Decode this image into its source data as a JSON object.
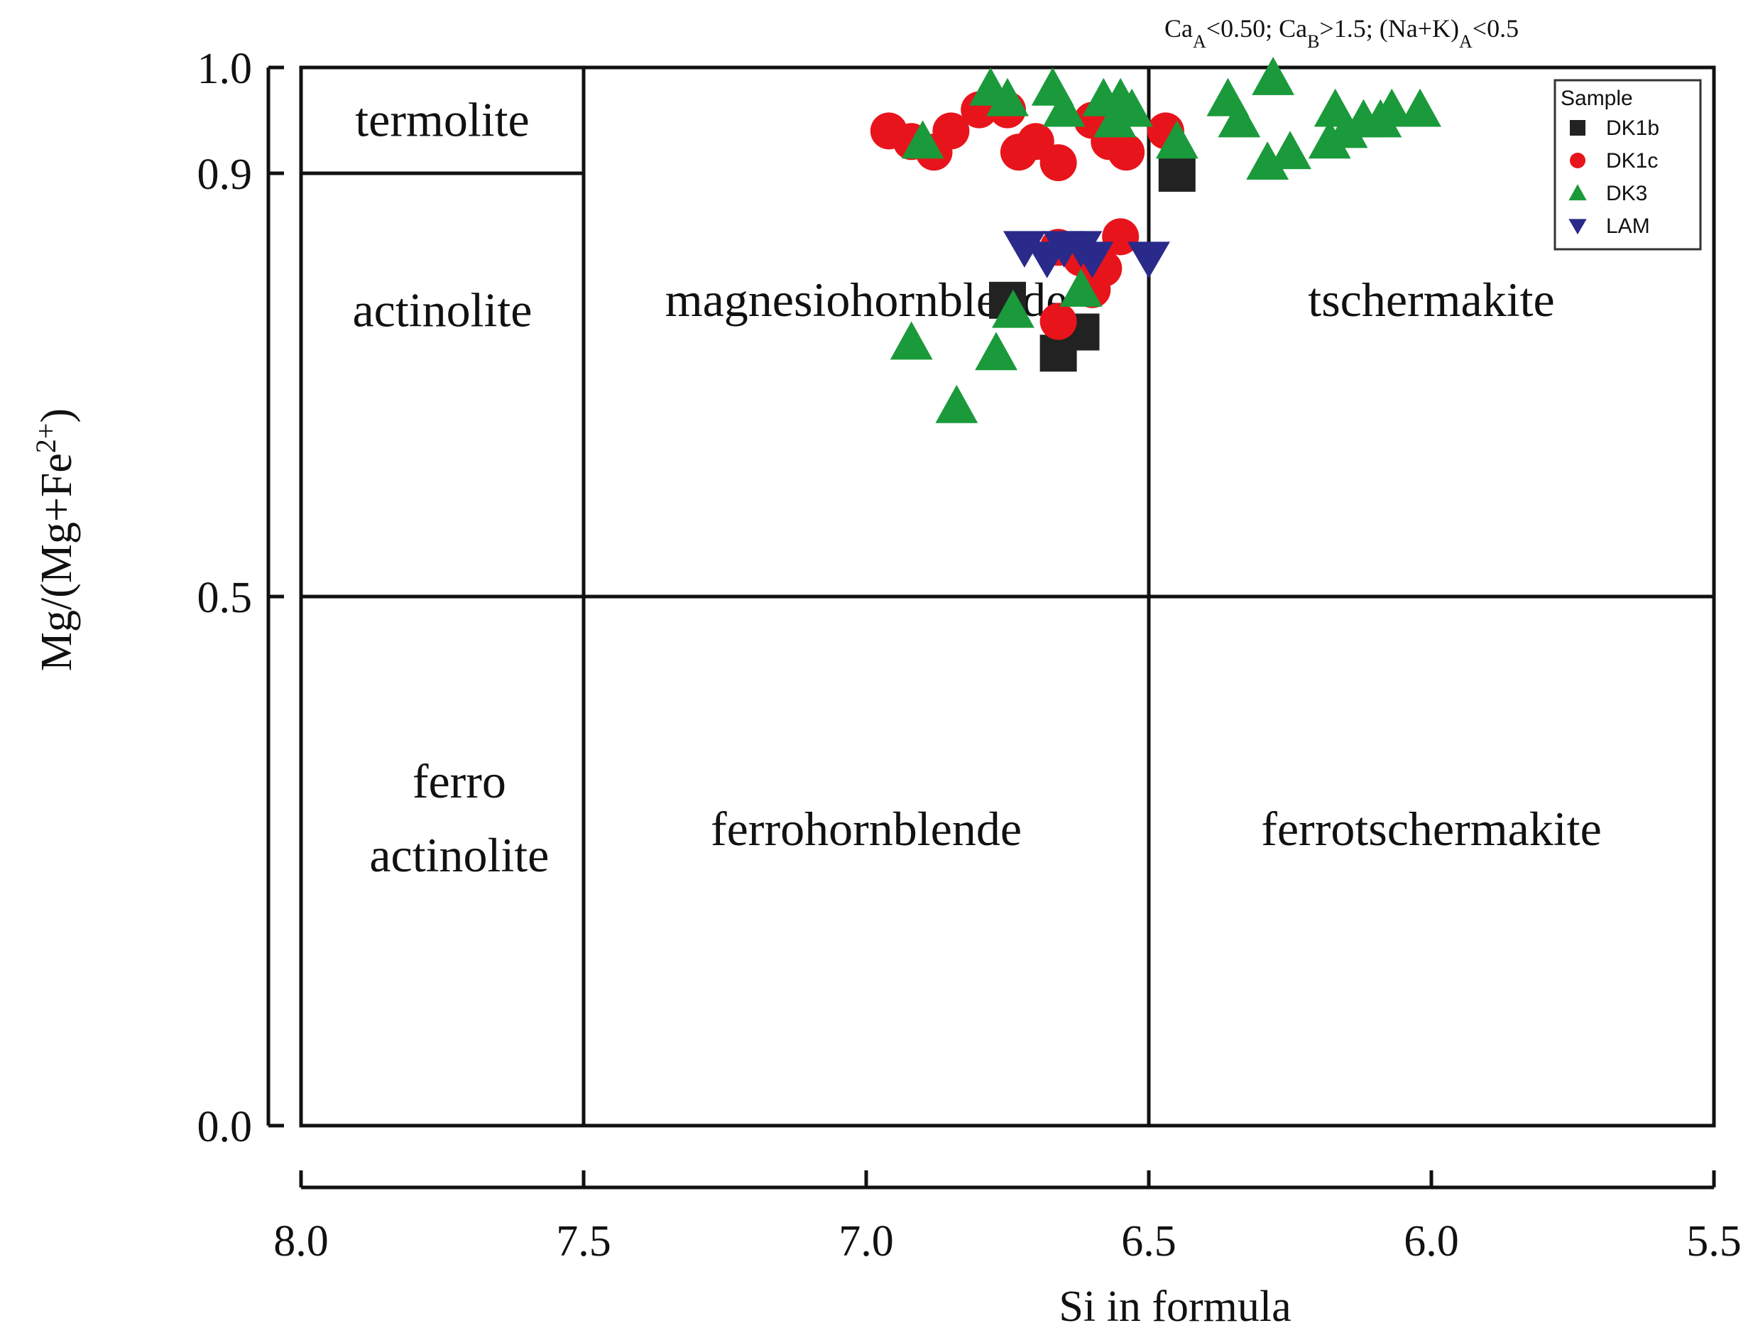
{
  "chart_data": {
    "type": "scatter",
    "title": "",
    "subtitle": "CaA<0.50; CaB>1.5; (Na+K)A<0.5",
    "subtitle_parts": [
      {
        "text": "Ca",
        "sub": false
      },
      {
        "text": "A",
        "sub": true
      },
      {
        "text": "<0.50; Ca",
        "sub": false
      },
      {
        "text": "B",
        "sub": true
      },
      {
        "text": ">1.5; (Na+K)",
        "sub": false
      },
      {
        "text": "A",
        "sub": true
      },
      {
        "text": "<0.5",
        "sub": false
      }
    ],
    "xlabel": "Si in formula",
    "ylabel": "Mg/(Mg+Fe2+)",
    "ylabel_base": "Mg/(Mg+Fe",
    "ylabel_sup": "2+",
    "ylabel_close": ")",
    "xlim": [
      8.0,
      5.5
    ],
    "ylim": [
      0.0,
      1.0
    ],
    "x_reversed": true,
    "xticks": [
      8.0,
      7.5,
      7.0,
      6.5,
      6.0,
      5.5
    ],
    "xtick_labels": [
      "8.0",
      "7.5",
      "7.0",
      "6.5",
      "6.0",
      "5.5"
    ],
    "yticks": [
      0.0,
      0.5,
      0.9,
      1.0
    ],
    "ytick_labels": [
      "0.0",
      "0.5",
      "0.9",
      "1.0"
    ],
    "grid": false,
    "legend_position": "top-right",
    "legend_title": "Sample",
    "boundaries": {
      "vertical_si": [
        7.5,
        6.5
      ],
      "horizontal_mg": 0.5,
      "termolite_mg": 0.9
    },
    "fields": [
      {
        "lines": [
          "termolite"
        ],
        "x": 7.75,
        "y": 0.95
      },
      {
        "lines": [
          "actinolite"
        ],
        "x": 7.75,
        "y": 0.77
      },
      {
        "lines": [
          "magnesiohornblende"
        ],
        "x": 7.0,
        "y": 0.78
      },
      {
        "lines": [
          "tschermakite"
        ],
        "x": 6.0,
        "y": 0.78
      },
      {
        "lines": [
          "ferro",
          "actinolite"
        ],
        "x": 7.72,
        "y": 0.29
      },
      {
        "lines": [
          "ferrohornblende"
        ],
        "x": 7.0,
        "y": 0.28
      },
      {
        "lines": [
          "ferrotschermakite"
        ],
        "x": 6.0,
        "y": 0.28
      }
    ],
    "series": [
      {
        "name": "DK1b",
        "marker": "square",
        "color": "#222222",
        "points": [
          [
            6.75,
            0.78
          ],
          [
            6.62,
            0.75
          ],
          [
            6.66,
            0.73
          ],
          [
            6.45,
            0.9
          ]
        ]
      },
      {
        "name": "DK1c",
        "marker": "circle",
        "color": "#e8141b",
        "points": [
          [
            6.96,
            0.94
          ],
          [
            6.92,
            0.93
          ],
          [
            6.88,
            0.92
          ],
          [
            6.85,
            0.94
          ],
          [
            6.8,
            0.96
          ],
          [
            6.75,
            0.96
          ],
          [
            6.73,
            0.92
          ],
          [
            6.7,
            0.93
          ],
          [
            6.66,
            0.91
          ],
          [
            6.6,
            0.95
          ],
          [
            6.57,
            0.93
          ],
          [
            6.54,
            0.92
          ],
          [
            6.47,
            0.94
          ],
          [
            6.66,
            0.83
          ],
          [
            6.62,
            0.82
          ],
          [
            6.58,
            0.81
          ],
          [
            6.55,
            0.84
          ],
          [
            6.6,
            0.79
          ],
          [
            6.66,
            0.76
          ]
        ]
      },
      {
        "name": "DK3",
        "marker": "triangle-up",
        "color": "#1a9a3a",
        "points": [
          [
            6.9,
            0.93
          ],
          [
            6.78,
            0.98
          ],
          [
            6.75,
            0.97
          ],
          [
            6.67,
            0.98
          ],
          [
            6.65,
            0.96
          ],
          [
            6.58,
            0.97
          ],
          [
            6.55,
            0.97
          ],
          [
            6.53,
            0.96
          ],
          [
            6.56,
            0.95
          ],
          [
            6.45,
            0.93
          ],
          [
            6.36,
            0.97
          ],
          [
            6.34,
            0.95
          ],
          [
            6.28,
            0.99
          ],
          [
            6.29,
            0.91
          ],
          [
            6.25,
            0.92
          ],
          [
            6.18,
            0.93
          ],
          [
            6.15,
            0.94
          ],
          [
            6.12,
            0.95
          ],
          [
            6.09,
            0.95
          ],
          [
            6.07,
            0.96
          ],
          [
            6.02,
            0.96
          ],
          [
            6.17,
            0.96
          ],
          [
            6.92,
            0.74
          ],
          [
            6.84,
            0.68
          ],
          [
            6.77,
            0.73
          ],
          [
            6.74,
            0.77
          ],
          [
            6.62,
            0.79
          ]
        ]
      },
      {
        "name": "LAM",
        "marker": "triangle-down",
        "color": "#2a2a8a",
        "points": [
          [
            6.72,
            0.83
          ],
          [
            6.68,
            0.82
          ],
          [
            6.65,
            0.83
          ],
          [
            6.62,
            0.83
          ],
          [
            6.6,
            0.82
          ],
          [
            6.5,
            0.82
          ]
        ]
      }
    ]
  }
}
